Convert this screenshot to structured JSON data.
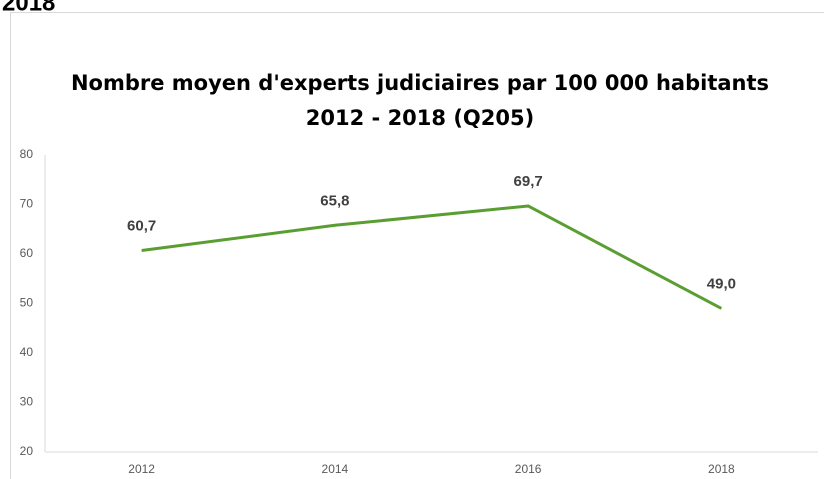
{
  "page_heading": "2018",
  "chart_data": {
    "type": "line",
    "title": "Nombre moyen d'experts judiciaires par 100 000 habitants",
    "subtitle": "2012 - 2018 (Q205)",
    "categories": [
      "2012",
      "2014",
      "2016",
      "2018"
    ],
    "series": [
      {
        "name": "Nombre moyen d'experts judiciaires",
        "color": "#5a9e32",
        "values": [
          60.7,
          65.8,
          69.7,
          49.0
        ],
        "value_labels": [
          "60,7",
          "65,8",
          "69,7",
          "49,0"
        ]
      }
    ],
    "ylim": [
      20,
      80
    ],
    "yticks": [
      20,
      30,
      40,
      50,
      60,
      70,
      80
    ],
    "grid": false,
    "legend": false
  }
}
